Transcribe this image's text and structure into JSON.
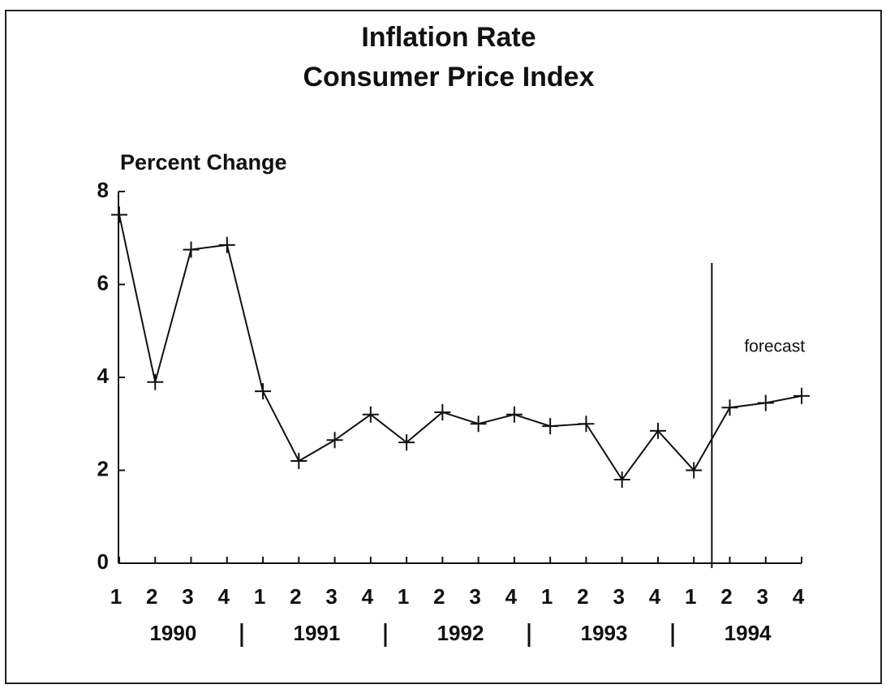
{
  "chart_data": {
    "type": "line",
    "title": "Inflation Rate",
    "subtitle": "Consumer Price Index",
    "y_label": "Percent Change",
    "categories": [
      "1",
      "2",
      "3",
      "4",
      "1",
      "2",
      "3",
      "4",
      "1",
      "2",
      "3",
      "4",
      "1",
      "2",
      "3",
      "4",
      "1",
      "2",
      "3",
      "4"
    ],
    "year_groups": [
      "1990",
      "1991",
      "1992",
      "1993",
      "1994"
    ],
    "series": [
      {
        "name": "CPI",
        "color": "#111111",
        "values": [
          7.5,
          3.9,
          6.75,
          6.85,
          3.7,
          2.2,
          2.65,
          3.2,
          2.6,
          3.25,
          3.0,
          3.2,
          2.95,
          3.0,
          1.8,
          2.85,
          2.0,
          3.35,
          3.45,
          3.6
        ]
      }
    ],
    "annotations": [
      {
        "text": "forecast"
      }
    ],
    "ylim": [
      0,
      8
    ],
    "yticks": [
      0,
      2,
      4,
      6,
      8
    ],
    "grid": false
  }
}
